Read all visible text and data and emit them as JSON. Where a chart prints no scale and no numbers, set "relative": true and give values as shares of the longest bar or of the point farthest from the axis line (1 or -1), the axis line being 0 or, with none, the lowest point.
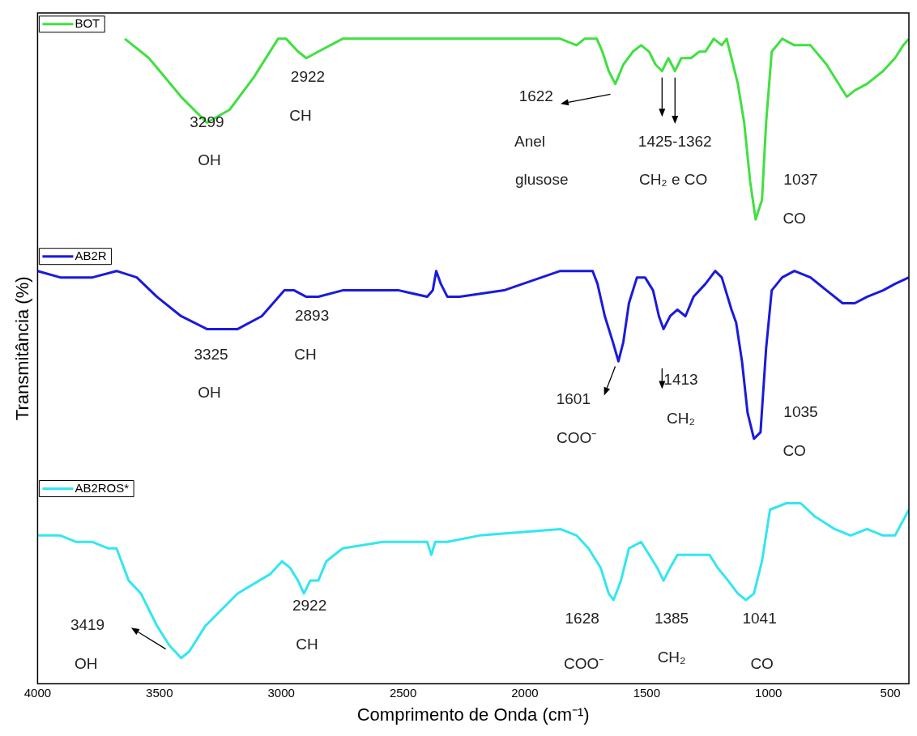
{
  "chart_data": {
    "type": "line",
    "relative": true,
    "xlabel": "Comprimento de Onda (cm⁻¹)",
    "ylabel": "Transmitância (%)",
    "xlim": [
      4000,
      424
    ],
    "xticks": [
      4000,
      3500,
      3000,
      2500,
      2000,
      1500,
      1000,
      500
    ],
    "grid": false,
    "legend": "top left",
    "marker": "none",
    "line_style": "solid",
    "series": [
      {
        "name": "BOT",
        "color": "#40e040",
        "x": [
          3642,
          3543,
          3411,
          3305,
          3212,
          3113,
          3013,
          2980,
          2931,
          2897,
          2848,
          2748,
          2517,
          1855,
          1788,
          1755,
          1705,
          1682,
          1656,
          1629,
          1596,
          1557,
          1523,
          1490,
          1464,
          1437,
          1411,
          1384,
          1358,
          1318,
          1285,
          1259,
          1225,
          1192,
          1172,
          1152,
          1126,
          1100,
          1076,
          1053,
          1027,
          1010,
          987,
          944,
          894,
          828,
          762,
          679,
          646,
          596,
          530,
          481,
          447,
          424
        ],
        "values": [
          1.0,
          0.97,
          0.91,
          0.87,
          0.89,
          0.94,
          1.0,
          1.0,
          0.98,
          0.97,
          0.98,
          1.0,
          1.0,
          1.0,
          0.99,
          1.0,
          1.0,
          0.98,
          0.95,
          0.93,
          0.96,
          0.98,
          0.99,
          0.98,
          0.96,
          0.95,
          0.97,
          0.95,
          0.97,
          0.97,
          0.98,
          0.98,
          1.0,
          0.99,
          1.0,
          0.97,
          0.93,
          0.87,
          0.78,
          0.72,
          0.75,
          0.87,
          0.98,
          1.0,
          0.99,
          0.99,
          0.96,
          0.91,
          0.92,
          0.93,
          0.95,
          0.97,
          0.99,
          1.0
        ]
      },
      {
        "name": "AB2R",
        "color": "#1a1adc",
        "x": [
          4000,
          3907,
          3775,
          3676,
          3593,
          3510,
          3411,
          3305,
          3179,
          3080,
          2987,
          2947,
          2897,
          2848,
          2748,
          2517,
          2401,
          2378,
          2364,
          2345,
          2318,
          2268,
          2086,
          1855,
          1722,
          1702,
          1672,
          1639,
          1616,
          1596,
          1573,
          1540,
          1507,
          1474,
          1450,
          1431,
          1404,
          1374,
          1341,
          1308,
          1259,
          1219,
          1192,
          1176,
          1152,
          1133,
          1109,
          1086,
          1060,
          1033,
          1010,
          987,
          944,
          894,
          828,
          762,
          696,
          646,
          596,
          530,
          481,
          424
        ],
        "values": [
          0.64,
          0.63,
          0.63,
          0.64,
          0.63,
          0.6,
          0.57,
          0.55,
          0.55,
          0.57,
          0.61,
          0.61,
          0.6,
          0.6,
          0.61,
          0.61,
          0.6,
          0.61,
          0.64,
          0.62,
          0.6,
          0.6,
          0.61,
          0.64,
          0.64,
          0.62,
          0.57,
          0.53,
          0.5,
          0.53,
          0.59,
          0.63,
          0.63,
          0.61,
          0.57,
          0.55,
          0.57,
          0.58,
          0.57,
          0.6,
          0.62,
          0.64,
          0.63,
          0.61,
          0.58,
          0.56,
          0.5,
          0.42,
          0.38,
          0.39,
          0.52,
          0.61,
          0.63,
          0.64,
          0.63,
          0.61,
          0.59,
          0.59,
          0.6,
          0.61,
          0.62,
          0.63
        ]
      },
      {
        "name": "AB2ROS*",
        "color": "#33e6f0",
        "x": [
          4000,
          3907,
          3841,
          3775,
          3709,
          3676,
          3626,
          3576,
          3510,
          3460,
          3411,
          3378,
          3311,
          3179,
          3046,
          2997,
          2964,
          2931,
          2907,
          2881,
          2848,
          2815,
          2748,
          2583,
          2517,
          2401,
          2384,
          2368,
          2318,
          2186,
          1855,
          1788,
          1739,
          1689,
          1656,
          1636,
          1606,
          1573,
          1523,
          1490,
          1457,
          1431,
          1404,
          1374,
          1308,
          1242,
          1209,
          1166,
          1126,
          1093,
          1060,
          1027,
          994,
          927,
          868,
          812,
          729,
          663,
          596,
          530,
          481,
          424
        ],
        "values": [
          0.23,
          0.23,
          0.22,
          0.22,
          0.21,
          0.21,
          0.16,
          0.14,
          0.09,
          0.06,
          0.04,
          0.05,
          0.09,
          0.14,
          0.17,
          0.19,
          0.18,
          0.16,
          0.14,
          0.16,
          0.16,
          0.19,
          0.21,
          0.22,
          0.22,
          0.22,
          0.2,
          0.22,
          0.22,
          0.23,
          0.24,
          0.23,
          0.21,
          0.18,
          0.14,
          0.13,
          0.16,
          0.21,
          0.22,
          0.2,
          0.18,
          0.16,
          0.18,
          0.2,
          0.2,
          0.2,
          0.18,
          0.16,
          0.14,
          0.13,
          0.14,
          0.19,
          0.27,
          0.28,
          0.28,
          0.26,
          0.24,
          0.23,
          0.24,
          0.23,
          0.23,
          0.27
        ]
      }
    ],
    "annotations": [
      "3299",
      "OH",
      "2922",
      "CH",
      "1622",
      "Anel",
      "glusose",
      "1425-1362",
      "CH₂ e CO",
      "1037",
      "CO",
      "3325",
      "OH",
      "2893",
      "CH",
      "1601",
      "COO⁻",
      "1413",
      "CH₂",
      "1035",
      "CO",
      "3419",
      "OH",
      "2922",
      "CH",
      "1628",
      "COO⁻",
      "1385",
      "CH₂",
      "1041",
      "CO"
    ]
  }
}
